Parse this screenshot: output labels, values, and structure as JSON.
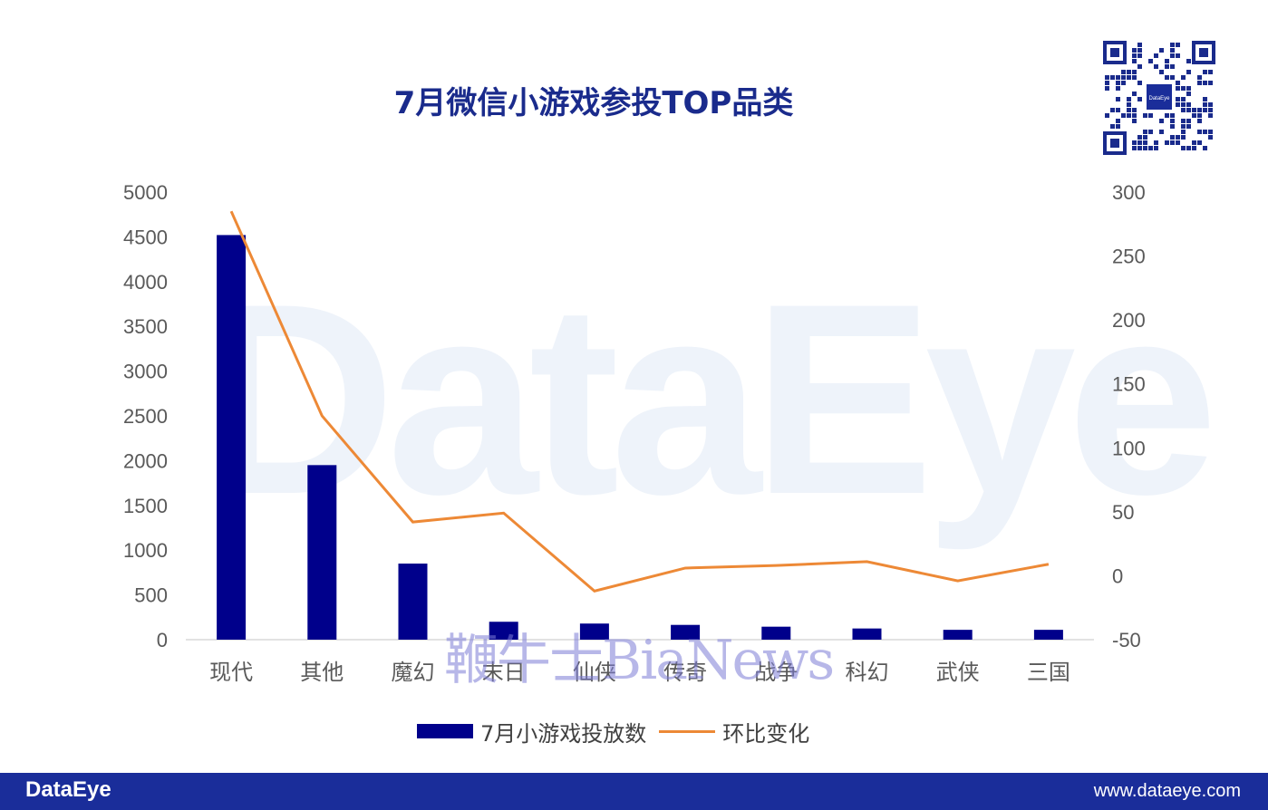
{
  "title": "7月微信小游戏参投TOP品类",
  "watermark": "DataEye",
  "overlay_watermark": "鞭牛士BiaNews",
  "qr_code": {
    "center_label": "DataEye"
  },
  "footer": {
    "brand": "DataEye",
    "url": "www.dataeye.com",
    "background": "#1a2d9a"
  },
  "chart_data": {
    "type": "bar",
    "categories": [
      "现代",
      "其他",
      "魔幻",
      "末日",
      "仙侠",
      "传奇",
      "战争",
      "科幻",
      "武侠",
      "三国"
    ],
    "series": [
      {
        "name": "7月小游戏投放数",
        "type": "bar",
        "axis": "left",
        "color": "#00008b",
        "values": [
          4520,
          1950,
          850,
          200,
          180,
          165,
          145,
          125,
          110,
          110
        ]
      },
      {
        "name": "环比变化",
        "type": "line",
        "axis": "right",
        "color": "#ed8936",
        "values": [
          285,
          125,
          42,
          49,
          -12,
          6,
          8,
          11,
          -4,
          9
        ]
      }
    ],
    "y_left": {
      "min": 0,
      "max": 5000,
      "ticks": [
        0,
        500,
        1000,
        1500,
        2000,
        2500,
        3000,
        3500,
        4000,
        4500,
        5000
      ]
    },
    "y_right": {
      "min": -50,
      "max": 300,
      "ticks": [
        -50,
        0,
        50,
        100,
        150,
        200,
        250,
        300
      ]
    },
    "grid": false,
    "legend_position": "bottom"
  }
}
